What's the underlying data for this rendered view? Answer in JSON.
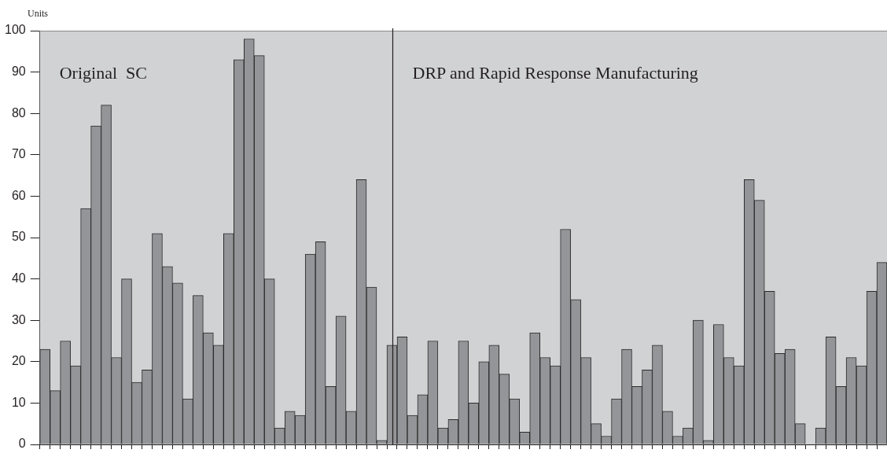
{
  "chart_data": {
    "type": "bar",
    "ylabel": "Units",
    "categories": [
      null,
      null,
      null,
      null,
      null,
      null,
      null,
      null,
      null,
      null,
      null,
      null,
      null,
      null,
      null,
      null,
      null,
      null,
      null,
      null,
      null,
      null,
      null,
      null,
      null,
      null,
      null,
      null,
      null,
      null,
      null,
      null,
      null,
      null,
      null,
      null,
      null,
      null,
      null,
      null,
      null,
      null,
      null,
      null,
      null,
      null,
      null,
      null,
      null,
      null,
      null,
      null,
      null,
      null,
      null,
      null,
      null,
      null,
      null,
      null,
      null,
      null,
      null,
      null,
      null,
      null,
      null,
      null,
      null,
      null,
      null,
      null,
      null,
      null,
      null,
      null,
      null,
      null,
      null,
      null,
      null,
      null,
      null
    ],
    "values": [
      23,
      13,
      25,
      19,
      57,
      77,
      82,
      21,
      40,
      15,
      18,
      51,
      43,
      39,
      11,
      36,
      27,
      24,
      51,
      93,
      98,
      94,
      40,
      4,
      8,
      7,
      46,
      49,
      14,
      31,
      8,
      64,
      38,
      1,
      24,
      26,
      7,
      12,
      25,
      4,
      6,
      25,
      10,
      20,
      24,
      17,
      11,
      3,
      27,
      21,
      19,
      52,
      35,
      21,
      5,
      2,
      11,
      23,
      14,
      18,
      24,
      8,
      2,
      4,
      30,
      1,
      29,
      21,
      19,
      64,
      59,
      37,
      22,
      23,
      5,
      0,
      4,
      26,
      14,
      21,
      19,
      37,
      44
    ],
    "color": "#939598",
    "ylim": [
      0,
      100
    ],
    "yticks": [
      0,
      10,
      20,
      30,
      40,
      50,
      60,
      70,
      80,
      90,
      100
    ],
    "annotations": [
      "Original  SC",
      "DRP and Rapid Response Manufacturing"
    ],
    "tick_labels": "y"
  }
}
